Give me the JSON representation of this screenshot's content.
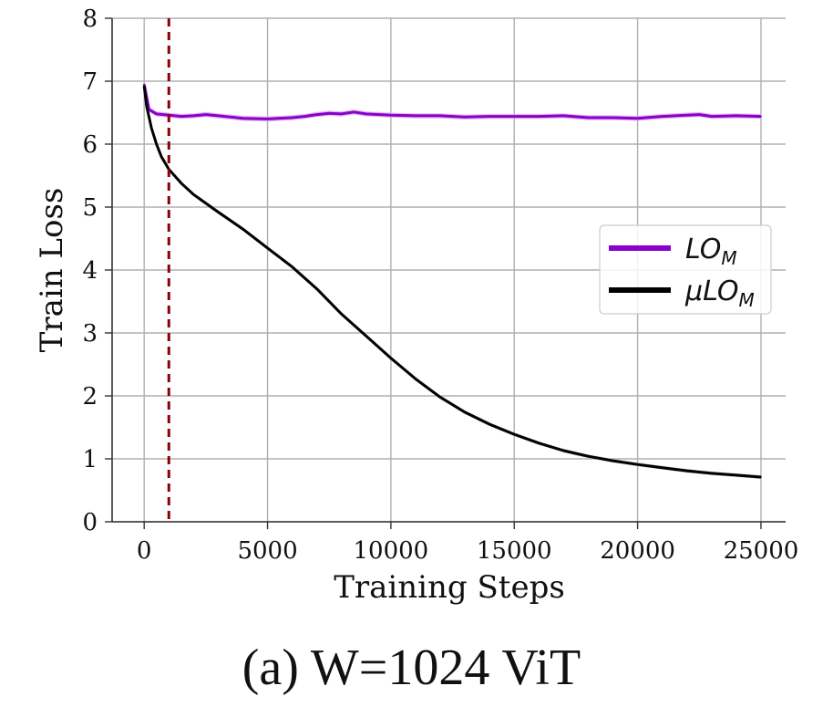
{
  "caption": "(a) W=1024 ViT",
  "chart_data": {
    "type": "line",
    "xlabel": "Training Steps",
    "ylabel": "Train Loss",
    "xlim": [
      -1300,
      26000
    ],
    "ylim": [
      0,
      8
    ],
    "xticks": [
      0,
      5000,
      10000,
      15000,
      20000,
      25000
    ],
    "yticks": [
      0,
      1,
      2,
      3,
      4,
      5,
      6,
      7,
      8
    ],
    "grid": true,
    "legend_position": "right",
    "vertical_marker": {
      "x": 1000,
      "color": "#8b0000",
      "style": "dashed"
    },
    "series": [
      {
        "name": "LO",
        "name_subscript": "M",
        "color": "#8a00cc",
        "band_color": "#d9a8ee",
        "x": [
          0,
          200,
          500,
          1000,
          1500,
          2000,
          2500,
          3000,
          4000,
          5000,
          6000,
          6500,
          7000,
          7500,
          8000,
          8500,
          9000,
          10000,
          11000,
          12000,
          13000,
          14000,
          15000,
          16000,
          17000,
          18000,
          19000,
          20000,
          21000,
          22000,
          22500,
          23000,
          24000,
          25000
        ],
        "y": [
          6.95,
          6.55,
          6.48,
          6.46,
          6.44,
          6.45,
          6.47,
          6.45,
          6.41,
          6.4,
          6.42,
          6.44,
          6.47,
          6.49,
          6.48,
          6.51,
          6.48,
          6.46,
          6.45,
          6.45,
          6.43,
          6.44,
          6.44,
          6.44,
          6.45,
          6.42,
          6.42,
          6.41,
          6.44,
          6.46,
          6.47,
          6.44,
          6.45,
          6.44
        ]
      },
      {
        "name": "μLO",
        "name_subscript": "M",
        "color": "#000000",
        "band_color": "#bdbdbd",
        "x": [
          0,
          100,
          300,
          500,
          700,
          1000,
          1500,
          2000,
          3000,
          4000,
          5000,
          6000,
          7000,
          8000,
          9000,
          10000,
          11000,
          12000,
          13000,
          14000,
          15000,
          16000,
          17000,
          18000,
          19000,
          20000,
          21000,
          22000,
          23000,
          24000,
          25000
        ],
        "y": [
          6.92,
          6.6,
          6.25,
          6.0,
          5.8,
          5.6,
          5.38,
          5.2,
          4.92,
          4.65,
          4.35,
          4.05,
          3.7,
          3.3,
          2.95,
          2.6,
          2.27,
          1.98,
          1.74,
          1.55,
          1.39,
          1.25,
          1.13,
          1.04,
          0.97,
          0.91,
          0.86,
          0.81,
          0.77,
          0.74,
          0.71
        ]
      }
    ]
  }
}
